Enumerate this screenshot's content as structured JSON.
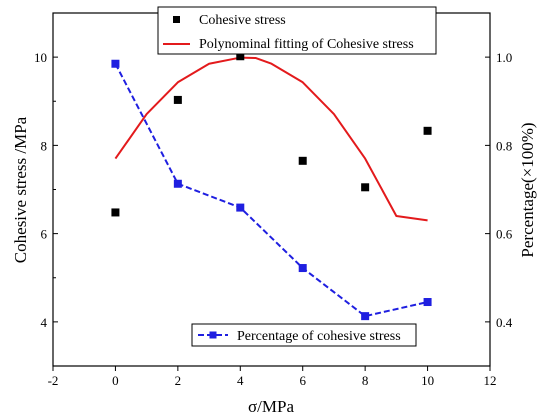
{
  "chart_data": {
    "type": "scatter",
    "xlabel": "σ/MPa",
    "ylabel_left": "Cohesive stress /MPa",
    "ylabel_right": "Percentage(×100%)",
    "xlim": [
      -2,
      12
    ],
    "ylim_left": [
      3,
      11
    ],
    "ylim_right": [
      0.3,
      1.1
    ],
    "x_ticks": [
      "-2",
      "0",
      "2",
      "4",
      "6",
      "8",
      "10",
      "12"
    ],
    "y_left_ticks": [
      "4",
      "6",
      "8",
      "10"
    ],
    "y_right_ticks": [
      "0.4",
      "0.6",
      "0.8",
      "1.0"
    ],
    "colors": {
      "cohesive": "#000000",
      "fit": "#e31a1c",
      "percentage": "#1f1fe0"
    },
    "series": [
      {
        "name": "Cohesive stress",
        "axis": "left",
        "style": "square-markers",
        "x": [
          0,
          2,
          4,
          6,
          8,
          10
        ],
        "values": [
          6.48,
          9.03,
          10.02,
          7.65,
          7.05,
          8.33
        ]
      },
      {
        "name": "Polynominal fitting of Cohesive stress",
        "axis": "left",
        "style": "line",
        "x": [
          0,
          1,
          2,
          3,
          4,
          4.5,
          5,
          6,
          7,
          8,
          9,
          10
        ],
        "values": [
          7.7,
          8.71,
          9.43,
          9.85,
          9.99,
          9.98,
          9.85,
          9.43,
          8.71,
          7.7,
          6.4,
          6.3
        ]
      },
      {
        "name": "Percentage of cohesive stress",
        "axis": "right",
        "style": "dashed-line-markers",
        "x": [
          0,
          2,
          4,
          6,
          8,
          10
        ],
        "values": [
          0.985,
          0.713,
          0.659,
          0.522,
          0.413,
          0.445
        ]
      }
    ]
  }
}
